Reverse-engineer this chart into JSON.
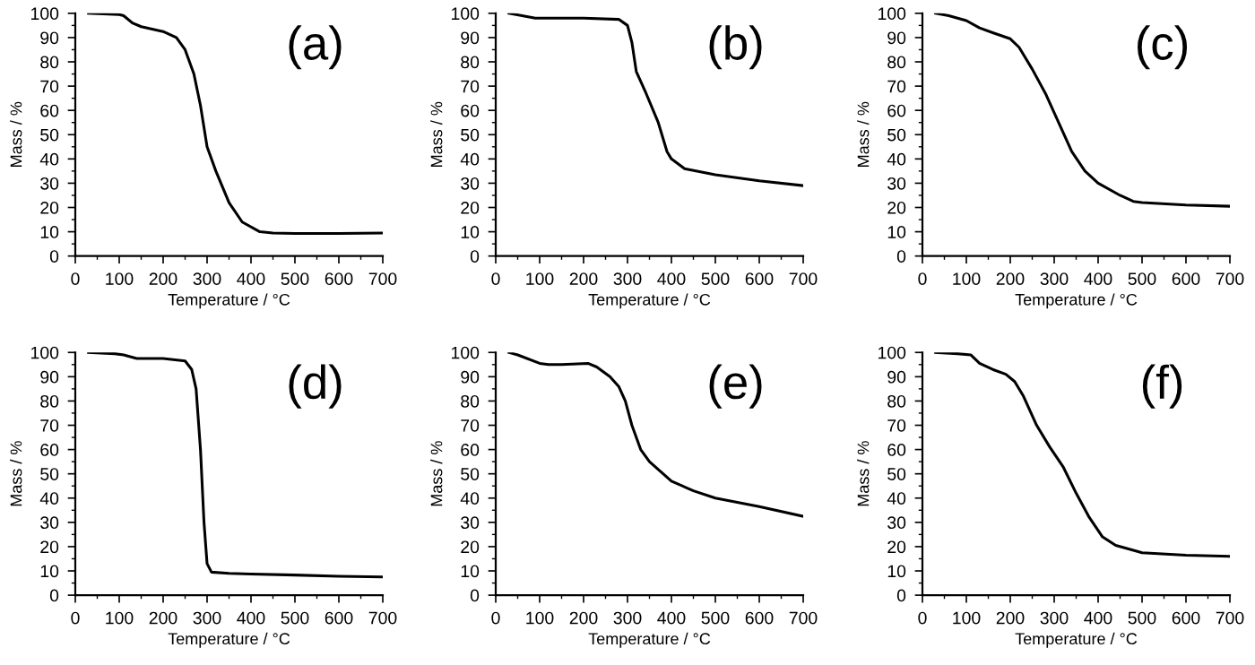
{
  "chart_data": [
    {
      "type": "line",
      "xlabel": "Temperature / °C",
      "ylabel": "Mass / %",
      "annotations": [
        "(a)"
      ],
      "xlim": [
        0,
        700
      ],
      "ylim": [
        0,
        100
      ],
      "xticks": [
        0,
        100,
        200,
        300,
        400,
        500,
        600,
        700
      ],
      "yticks": [
        0,
        10,
        20,
        30,
        40,
        50,
        60,
        70,
        80,
        90,
        100
      ],
      "grid": false,
      "legend": false,
      "series": [
        {
          "color": "#000000",
          "x": [
            30,
            100,
            110,
            130,
            150,
            200,
            230,
            250,
            270,
            285,
            300,
            320,
            350,
            380,
            420,
            450,
            500,
            600,
            700
          ],
          "values": [
            100,
            99.5,
            99,
            96,
            94.5,
            92.5,
            90,
            85,
            75,
            62,
            45,
            35,
            22,
            14,
            10,
            9.5,
            9.3,
            9.3,
            9.5
          ]
        }
      ]
    },
    {
      "type": "line",
      "xlabel": "Temperature / °C",
      "ylabel": "Mass / %",
      "annotations": [
        "(b)"
      ],
      "xlim": [
        0,
        700
      ],
      "ylim": [
        0,
        100
      ],
      "xticks": [
        0,
        100,
        200,
        300,
        400,
        500,
        600,
        700
      ],
      "yticks": [
        0,
        10,
        20,
        30,
        40,
        50,
        60,
        70,
        80,
        90,
        100
      ],
      "grid": false,
      "legend": false,
      "series": [
        {
          "color": "#000000",
          "x": [
            30,
            60,
            90,
            200,
            280,
            300,
            310,
            320,
            340,
            370,
            390,
            400,
            430,
            500,
            600,
            700
          ],
          "values": [
            100,
            99,
            98,
            98,
            97.5,
            95,
            88,
            76,
            68,
            55,
            43,
            40,
            36,
            33.5,
            31,
            29
          ]
        }
      ]
    },
    {
      "type": "line",
      "xlabel": "Temperature / °C",
      "ylabel": "Mass / %",
      "annotations": [
        "(c)"
      ],
      "xlim": [
        0,
        700
      ],
      "ylim": [
        0,
        100
      ],
      "xticks": [
        0,
        100,
        200,
        300,
        400,
        500,
        600,
        700
      ],
      "yticks": [
        0,
        10,
        20,
        30,
        40,
        50,
        60,
        70,
        80,
        90,
        100
      ],
      "grid": false,
      "legend": false,
      "series": [
        {
          "color": "#000000",
          "x": [
            30,
            60,
            100,
            130,
            160,
            200,
            220,
            250,
            280,
            310,
            340,
            370,
            400,
            450,
            480,
            500,
            600,
            700
          ],
          "values": [
            100,
            99,
            97,
            94,
            92,
            89.5,
            86,
            77,
            67,
            55,
            43,
            35,
            30,
            25,
            22.5,
            22,
            21,
            20.5
          ]
        }
      ]
    },
    {
      "type": "line",
      "xlabel": "Temperature / °C",
      "ylabel": "Mass / %",
      "annotations": [
        "(d)"
      ],
      "xlim": [
        0,
        700
      ],
      "ylim": [
        0,
        100
      ],
      "xticks": [
        0,
        100,
        200,
        300,
        400,
        500,
        600,
        700
      ],
      "yticks": [
        0,
        10,
        20,
        30,
        40,
        50,
        60,
        70,
        80,
        90,
        100
      ],
      "grid": false,
      "legend": false,
      "series": [
        {
          "color": "#000000",
          "x": [
            30,
            90,
            110,
            140,
            200,
            250,
            265,
            275,
            285,
            293,
            300,
            310,
            350,
            400,
            500,
            600,
            700
          ],
          "values": [
            100,
            99.5,
            99,
            97.5,
            97.5,
            96.5,
            93,
            85,
            60,
            30,
            13,
            9.5,
            9,
            8.7,
            8.3,
            7.8,
            7.5
          ]
        }
      ]
    },
    {
      "type": "line",
      "xlabel": "Temperature / °C",
      "ylabel": "Mass / %",
      "annotations": [
        "(e)"
      ],
      "xlim": [
        0,
        700
      ],
      "ylim": [
        0,
        100
      ],
      "xticks": [
        0,
        100,
        200,
        300,
        400,
        500,
        600,
        700
      ],
      "yticks": [
        0,
        10,
        20,
        30,
        40,
        50,
        60,
        70,
        80,
        90,
        100
      ],
      "grid": false,
      "legend": false,
      "series": [
        {
          "color": "#000000",
          "x": [
            30,
            50,
            100,
            120,
            150,
            210,
            230,
            260,
            280,
            295,
            310,
            330,
            350,
            400,
            450,
            500,
            600,
            700
          ],
          "values": [
            100,
            99,
            95.5,
            95,
            95,
            95.5,
            94,
            90,
            86,
            80,
            70,
            60,
            55,
            47,
            43,
            40,
            36.5,
            32.5
          ]
        }
      ]
    },
    {
      "type": "line",
      "xlabel": "Temperature / °C",
      "ylabel": "Mass / %",
      "annotations": [
        "(f)"
      ],
      "xlim": [
        0,
        700
      ],
      "ylim": [
        0,
        100
      ],
      "xticks": [
        0,
        100,
        200,
        300,
        400,
        500,
        600,
        700
      ],
      "yticks": [
        0,
        10,
        20,
        30,
        40,
        50,
        60,
        70,
        80,
        90,
        100
      ],
      "grid": false,
      "legend": false,
      "series": [
        {
          "color": "#000000",
          "x": [
            30,
            80,
            110,
            130,
            160,
            190,
            210,
            230,
            260,
            290,
            320,
            350,
            380,
            410,
            440,
            500,
            600,
            700
          ],
          "values": [
            100,
            99.5,
            99,
            95.5,
            93,
            91,
            88,
            82,
            70,
            61,
            53,
            42,
            32,
            24,
            20.5,
            17.5,
            16.5,
            16
          ]
        }
      ]
    }
  ]
}
